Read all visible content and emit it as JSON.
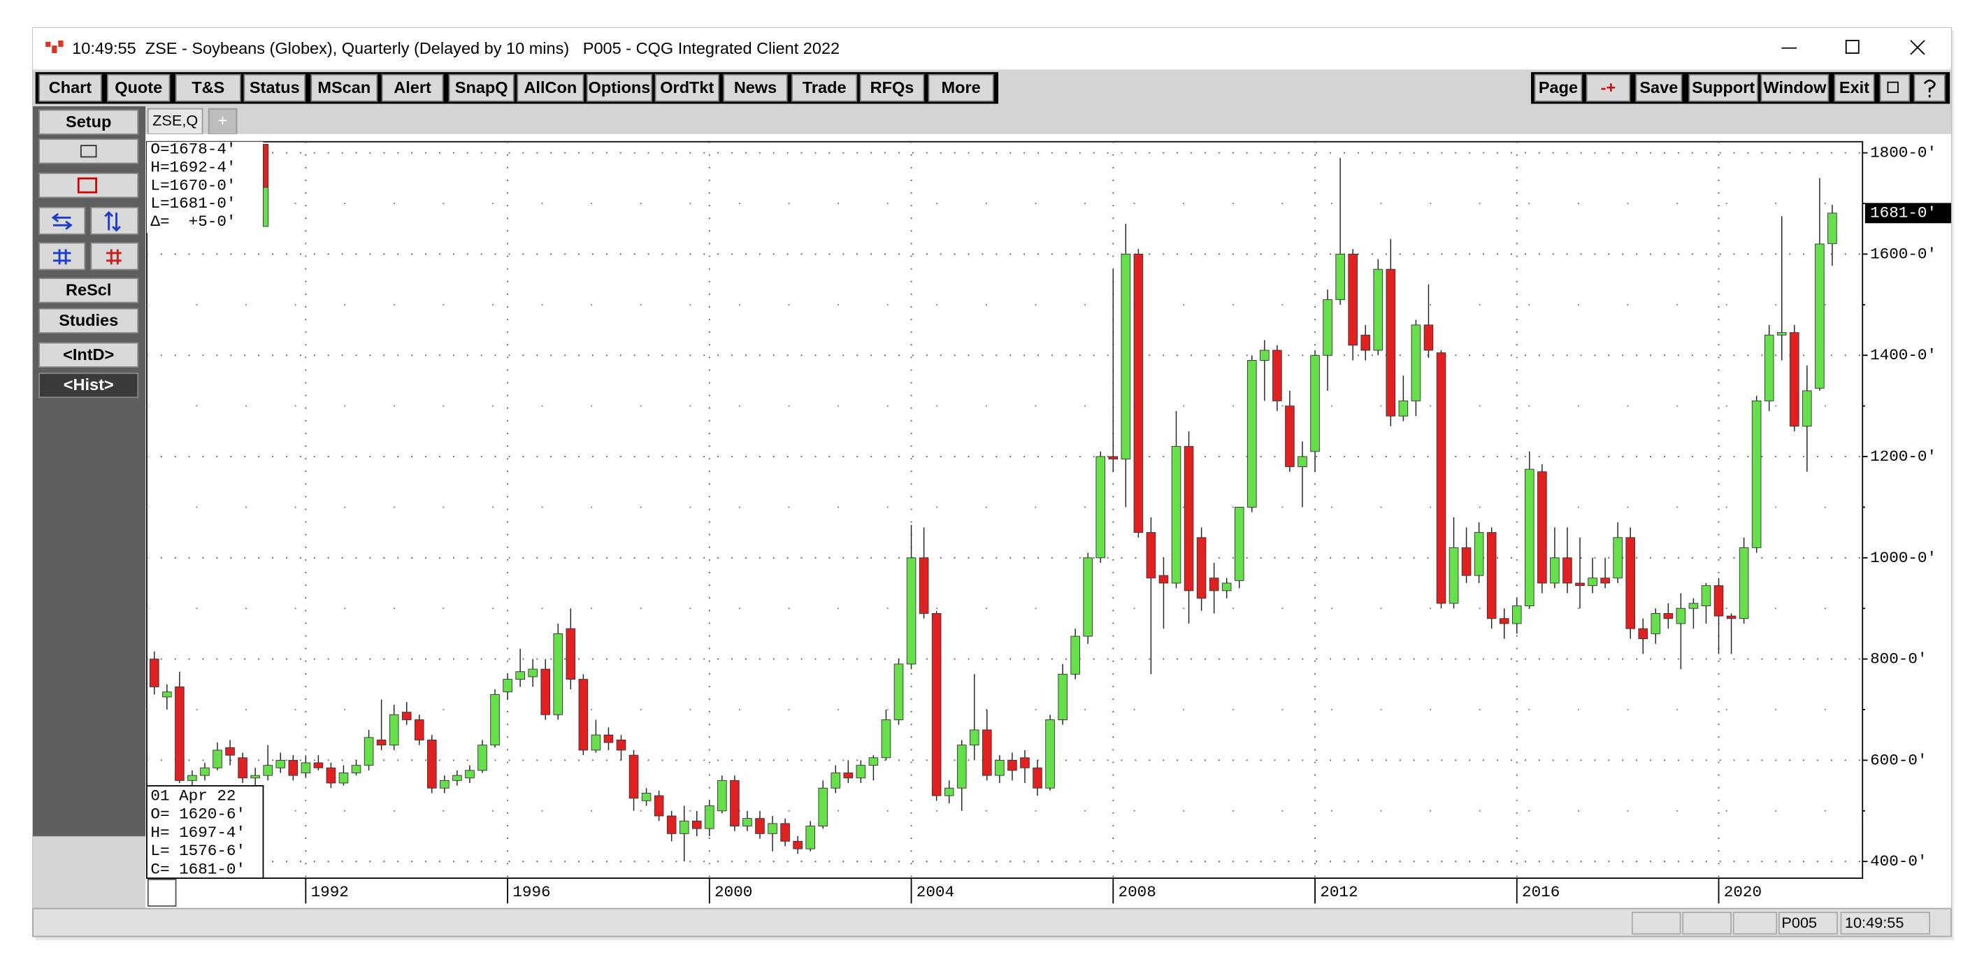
{
  "window": {
    "title": "10:49:55  ZSE - Soybeans (Globex), Quarterly (Delayed by 10 mins)   P005 - CQG Integrated Client 2022"
  },
  "toolbar": {
    "left": [
      "Chart",
      "Quote",
      "T&S",
      "Status",
      "MScan",
      "Alert",
      "SnapQ",
      "AllCon",
      "Options",
      "OrdTkt",
      "News",
      "Trade",
      "RFQs",
      "More"
    ],
    "right": [
      "Page",
      "-+",
      "Save",
      "Support",
      "Window",
      "Exit"
    ]
  },
  "sidebar": [
    "Setup",
    "ReScl",
    "Studies",
    "<IntD>",
    "<Hist>"
  ],
  "tabs": [
    "ZSE,Q",
    "+"
  ],
  "chart_data": {
    "type": "candlestick",
    "up_color": "#66e04a",
    "down_color": "#e32020",
    "grid": true,
    "xlim": [
      1988.85,
      2022.85
    ],
    "xticks": [
      1992,
      1996,
      2000,
      2004,
      2008,
      2012,
      2016,
      2020
    ],
    "ylim": [
      367,
      1822
    ],
    "yticks": [
      {
        "value": 400,
        "label": "400-0'"
      },
      {
        "value": 600,
        "label": "600-0'"
      },
      {
        "value": 800,
        "label": "800-0'"
      },
      {
        "value": 1000,
        "label": "1000-0'"
      },
      {
        "value": 1200,
        "label": "1200-0'"
      },
      {
        "value": 1400,
        "label": "1400-0'"
      },
      {
        "value": 1600,
        "label": "1600-0'"
      },
      {
        "value": 1800,
        "label": "1800-0'"
      }
    ],
    "minor_yticks": [
      500,
      700,
      900,
      1100,
      1300,
      1500,
      1700
    ],
    "last_price": {
      "value": 1681,
      "label": "1681-0'"
    },
    "ohlc_legend": [
      "O=1678-4'",
      "H=1692-4'",
      "L=1670-0'",
      "L=1681-0'",
      "Δ=  +5-0'"
    ],
    "bar_info": [
      "01 Apr 22",
      "O= 1620-6'",
      "H= 1697-4'",
      "L= 1576-6'",
      "C= 1681-0'"
    ],
    "candles": [
      [
        1989,
        800,
        815,
        730,
        745
      ],
      [
        1989.25,
        725,
        750,
        700,
        735
      ],
      [
        1989.5,
        745,
        775,
        555,
        560
      ],
      [
        1989.75,
        560,
        580,
        550,
        570
      ],
      [
        1990,
        570,
        595,
        560,
        585
      ],
      [
        1990.25,
        585,
        635,
        580,
        620
      ],
      [
        1990.5,
        625,
        640,
        590,
        610
      ],
      [
        1990.75,
        605,
        615,
        555,
        565
      ],
      [
        1991,
        565,
        585,
        550,
        570
      ],
      [
        1991.25,
        570,
        630,
        560,
        590
      ],
      [
        1991.5,
        585,
        615,
        575,
        600
      ],
      [
        1991.75,
        600,
        610,
        560,
        570
      ],
      [
        1992,
        575,
        610,
        565,
        595
      ],
      [
        1992.25,
        595,
        610,
        580,
        585
      ],
      [
        1992.5,
        585,
        595,
        545,
        555
      ],
      [
        1992.75,
        555,
        590,
        550,
        575
      ],
      [
        1993,
        575,
        600,
        570,
        590
      ],
      [
        1993.25,
        590,
        660,
        580,
        645
      ],
      [
        1993.5,
        640,
        720,
        620,
        630
      ],
      [
        1993.75,
        630,
        710,
        620,
        690
      ],
      [
        1994,
        695,
        715,
        670,
        680
      ],
      [
        1994.25,
        680,
        690,
        630,
        640
      ],
      [
        1994.5,
        640,
        650,
        535,
        545
      ],
      [
        1994.75,
        545,
        570,
        535,
        560
      ],
      [
        1995,
        560,
        580,
        550,
        570
      ],
      [
        1995.25,
        565,
        590,
        555,
        580
      ],
      [
        1995.5,
        580,
        640,
        575,
        630
      ],
      [
        1995.75,
        630,
        740,
        625,
        730
      ],
      [
        1996,
        735,
        770,
        720,
        760
      ],
      [
        1996.25,
        760,
        820,
        745,
        775
      ],
      [
        1996.5,
        765,
        800,
        745,
        780
      ],
      [
        1996.75,
        780,
        800,
        680,
        690
      ],
      [
        1997,
        690,
        870,
        680,
        850
      ],
      [
        1997.25,
        860,
        900,
        740,
        760
      ],
      [
        1997.5,
        760,
        770,
        610,
        620
      ],
      [
        1997.75,
        620,
        680,
        615,
        650
      ],
      [
        1998,
        650,
        665,
        620,
        635
      ],
      [
        1998.25,
        640,
        650,
        600,
        620
      ],
      [
        1998.5,
        610,
        620,
        500,
        525
      ],
      [
        1998.75,
        520,
        545,
        510,
        535
      ],
      [
        1999,
        530,
        540,
        480,
        490
      ],
      [
        1999.25,
        490,
        500,
        440,
        455
      ],
      [
        1999.5,
        455,
        510,
        400,
        480
      ],
      [
        1999.75,
        480,
        500,
        450,
        465
      ],
      [
        2000,
        465,
        520,
        450,
        510
      ],
      [
        2000.25,
        500,
        570,
        495,
        560
      ],
      [
        2000.5,
        560,
        570,
        460,
        470
      ],
      [
        2000.75,
        470,
        500,
        460,
        485
      ],
      [
        2001,
        485,
        500,
        445,
        455
      ],
      [
        2001.25,
        455,
        490,
        420,
        475
      ],
      [
        2001.5,
        475,
        485,
        430,
        440
      ],
      [
        2001.75,
        440,
        450,
        415,
        425
      ],
      [
        2002,
        425,
        480,
        420,
        470
      ],
      [
        2002.25,
        470,
        560,
        465,
        545
      ],
      [
        2002.5,
        545,
        590,
        535,
        575
      ],
      [
        2002.75,
        575,
        600,
        555,
        565
      ],
      [
        2003,
        565,
        600,
        555,
        590
      ],
      [
        2003.25,
        590,
        610,
        560,
        605
      ],
      [
        2003.5,
        605,
        700,
        600,
        680
      ],
      [
        2003.75,
        680,
        800,
        670,
        790
      ],
      [
        2004,
        790,
        1065,
        780,
        1000
      ],
      [
        2004.25,
        1000,
        1060,
        880,
        890
      ],
      [
        2004.5,
        890,
        895,
        520,
        530
      ],
      [
        2004.75,
        530,
        560,
        515,
        545
      ],
      [
        2005,
        545,
        640,
        500,
        630
      ],
      [
        2005.25,
        630,
        770,
        600,
        660
      ],
      [
        2005.5,
        660,
        700,
        560,
        570
      ],
      [
        2005.75,
        570,
        610,
        555,
        600
      ],
      [
        2006,
        600,
        615,
        560,
        580
      ],
      [
        2006.25,
        605,
        620,
        555,
        585
      ],
      [
        2006.5,
        585,
        600,
        530,
        545
      ],
      [
        2006.75,
        545,
        690,
        540,
        680
      ],
      [
        2007,
        680,
        790,
        670,
        770
      ],
      [
        2007.25,
        770,
        860,
        760,
        845
      ],
      [
        2007.5,
        845,
        1010,
        830,
        1000
      ],
      [
        2007.75,
        1000,
        1210,
        990,
        1200
      ],
      [
        2008,
        1200,
        1570,
        1170,
        1195
      ],
      [
        2008.25,
        1195,
        1660,
        1100,
        1600
      ],
      [
        2008.5,
        1600,
        1610,
        1040,
        1050
      ],
      [
        2008.75,
        1050,
        1080,
        770,
        960
      ],
      [
        2009,
        965,
        1000,
        860,
        950
      ],
      [
        2009.25,
        950,
        1290,
        940,
        1220
      ],
      [
        2009.5,
        1220,
        1250,
        870,
        935
      ],
      [
        2009.75,
        1040,
        1060,
        895,
        920
      ],
      [
        2010,
        960,
        990,
        890,
        935
      ],
      [
        2010.25,
        935,
        960,
        920,
        950
      ],
      [
        2010.5,
        955,
        1100,
        940,
        1100
      ],
      [
        2010.75,
        1100,
        1400,
        1090,
        1390
      ],
      [
        2011,
        1390,
        1430,
        1310,
        1410
      ],
      [
        2011.25,
        1410,
        1420,
        1290,
        1310
      ],
      [
        2011.5,
        1300,
        1330,
        1170,
        1180
      ],
      [
        2011.75,
        1180,
        1230,
        1100,
        1200
      ],
      [
        2012,
        1210,
        1410,
        1170,
        1400
      ],
      [
        2012.25,
        1400,
        1530,
        1330,
        1510
      ],
      [
        2012.5,
        1510,
        1790,
        1500,
        1600
      ],
      [
        2012.75,
        1600,
        1610,
        1390,
        1420
      ],
      [
        2013,
        1440,
        1460,
        1390,
        1410
      ],
      [
        2013.25,
        1410,
        1590,
        1400,
        1570
      ],
      [
        2013.5,
        1570,
        1630,
        1260,
        1280
      ],
      [
        2013.75,
        1280,
        1360,
        1270,
        1310
      ],
      [
        2014,
        1310,
        1470,
        1280,
        1460
      ],
      [
        2014.25,
        1460,
        1540,
        1395,
        1410
      ],
      [
        2014.5,
        1405,
        1410,
        900,
        910
      ],
      [
        2014.75,
        910,
        1080,
        900,
        1020
      ],
      [
        2015,
        1020,
        1060,
        950,
        965
      ],
      [
        2015.25,
        965,
        1070,
        950,
        1050
      ],
      [
        2015.5,
        1050,
        1060,
        860,
        880
      ],
      [
        2015.75,
        880,
        900,
        840,
        870
      ],
      [
        2016,
        870,
        920,
        850,
        905
      ],
      [
        2016.25,
        905,
        1210,
        900,
        1175
      ],
      [
        2016.5,
        1170,
        1185,
        930,
        950
      ],
      [
        2016.75,
        950,
        1060,
        940,
        1000
      ],
      [
        2017,
        1000,
        1060,
        930,
        950
      ],
      [
        2017.25,
        950,
        1040,
        900,
        945
      ],
      [
        2017.5,
        945,
        1000,
        930,
        960
      ],
      [
        2017.75,
        960,
        1000,
        940,
        950
      ],
      [
        2018,
        960,
        1070,
        950,
        1040
      ],
      [
        2018.25,
        1040,
        1060,
        840,
        860
      ],
      [
        2018.5,
        860,
        880,
        810,
        840
      ],
      [
        2018.75,
        850,
        900,
        830,
        890
      ],
      [
        2019,
        890,
        910,
        860,
        880
      ],
      [
        2019.25,
        870,
        930,
        780,
        900
      ],
      [
        2019.5,
        900,
        920,
        860,
        910
      ],
      [
        2019.75,
        905,
        950,
        870,
        945
      ],
      [
        2020,
        945,
        960,
        810,
        885
      ],
      [
        2020.25,
        885,
        890,
        810,
        880
      ],
      [
        2020.5,
        880,
        1040,
        870,
        1020
      ],
      [
        2020.75,
        1020,
        1320,
        1010,
        1310
      ],
      [
        2021,
        1310,
        1460,
        1290,
        1440
      ],
      [
        2021.25,
        1440,
        1675,
        1390,
        1445
      ],
      [
        2021.5,
        1445,
        1460,
        1250,
        1260
      ],
      [
        2021.75,
        1260,
        1380,
        1170,
        1330
      ],
      [
        2022,
        1335,
        1750,
        1330,
        1620
      ],
      [
        2022.25,
        1620.75,
        1697.5,
        1576.75,
        1681
      ]
    ]
  },
  "status_bar": [
    "P005",
    "10:49:55"
  ]
}
